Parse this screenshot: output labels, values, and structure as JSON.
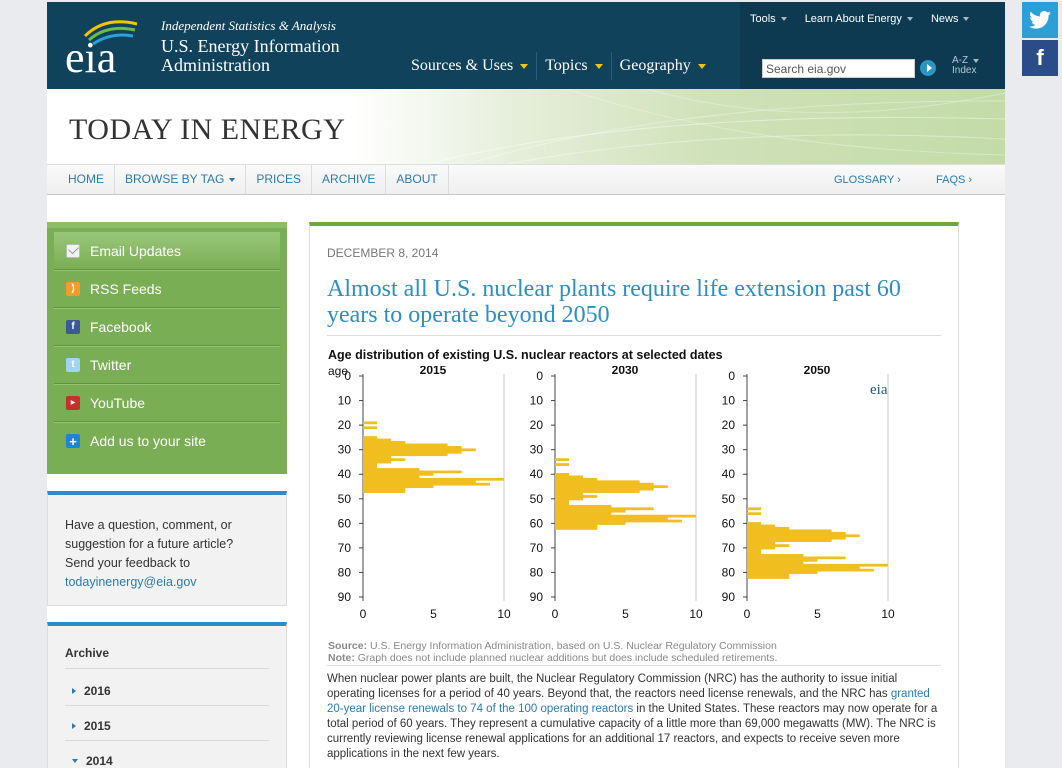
{
  "header": {
    "logo_text": "eia",
    "tagline": "Independent Statistics & Analysis",
    "org_name_line1": "U.S. Energy Information",
    "org_name_line2": "Administration",
    "main_nav": [
      "Sources & Uses",
      "Topics",
      "Geography"
    ],
    "util_nav": [
      "Tools",
      "Learn About Energy",
      "News"
    ],
    "search_placeholder": "Search eia.gov",
    "az_line1": "A-Z",
    "az_line2": "Index"
  },
  "banner": {
    "title": "TODAY IN ENERGY"
  },
  "sub_nav": {
    "items": [
      "HOME",
      "BROWSE BY TAG",
      "PRICES",
      "ARCHIVE",
      "ABOUT"
    ],
    "glossary": "GLOSSARY ›",
    "faqs": "FAQS ›"
  },
  "sidebar": {
    "social": [
      {
        "label": "Email Updates",
        "icon": "email-icon"
      },
      {
        "label": "RSS Feeds",
        "icon": "rss-icon"
      },
      {
        "label": "Facebook",
        "icon": "facebook-icon"
      },
      {
        "label": "Twitter",
        "icon": "twitter-icon"
      },
      {
        "label": "YouTube",
        "icon": "youtube-icon"
      },
      {
        "label": "Add us to your site",
        "icon": "plus-icon"
      }
    ],
    "feedback_text": "Have a question, comment, or suggestion for a future article? Send your feedback to",
    "feedback_email": "todayinenergy@eia.gov",
    "archive_heading": "Archive",
    "archive_years": [
      "2016",
      "2015",
      "2014"
    ]
  },
  "article": {
    "date": "DECEMBER 8, 2014",
    "title": "Almost all U.S. nuclear plants require life extension past 60 years to operate beyond 2050",
    "source_label": "Source:",
    "source_text": "U.S. Energy Information Administration, based on U.S. Nuclear Regulatory Commission",
    "note_label": "Note:",
    "note_text": "Graph does not include planned nuclear additions but does include scheduled retirements.",
    "body_part1": "When nuclear power plants are built, the Nuclear Regulatory Commission (NRC) has the authority to issue initial operating licenses for a period of 40 years. Beyond that, the reactors need license renewals, and the NRC has ",
    "body_link": "granted 20-year license renewals to 74 of the 100 operating reactors",
    "body_part2": " in the United States. These reactors may now operate for a total period of 60 years. They represent a cumulative capacity of a little more than 69,000 megawatts (MW). The NRC is currently reviewing license renewal applications for an additional 17 reactors, and expects to receive seven more applications in the next few years."
  },
  "chart_data": {
    "type": "bar",
    "orientation": "horizontal",
    "title": "Age distribution  of existing U.S. nuclear reactors at selected dates",
    "ylabel": "age",
    "logo": "eia",
    "bar_color": "#f0be1e",
    "y_ticks": [
      0,
      10,
      20,
      30,
      40,
      50,
      60,
      70,
      80,
      90
    ],
    "x_ticks": [
      0,
      5,
      10
    ],
    "ylim": [
      0,
      90
    ],
    "xlim": [
      0,
      10
    ],
    "panels": [
      {
        "name": "2015",
        "bars": [
          {
            "age": 19,
            "count": 1
          },
          {
            "age": 20,
            "count": 0
          },
          {
            "age": 21,
            "count": 1
          },
          {
            "age": 25,
            "count": 1
          },
          {
            "age": 26,
            "count": 2
          },
          {
            "age": 27,
            "count": 3
          },
          {
            "age": 28,
            "count": 6
          },
          {
            "age": 29,
            "count": 7
          },
          {
            "age": 30,
            "count": 8
          },
          {
            "age": 31,
            "count": 7
          },
          {
            "age": 32,
            "count": 6
          },
          {
            "age": 33,
            "count": 2
          },
          {
            "age": 34,
            "count": 3
          },
          {
            "age": 35,
            "count": 2
          },
          {
            "age": 36,
            "count": 1
          },
          {
            "age": 37,
            "count": 1
          },
          {
            "age": 38,
            "count": 4
          },
          {
            "age": 39,
            "count": 7
          },
          {
            "age": 40,
            "count": 5
          },
          {
            "age": 41,
            "count": 4
          },
          {
            "age": 42,
            "count": 10
          },
          {
            "age": 43,
            "count": 8
          },
          {
            "age": 44,
            "count": 9
          },
          {
            "age": 45,
            "count": 5
          },
          {
            "age": 46,
            "count": 3
          },
          {
            "age": 47,
            "count": 3
          }
        ]
      },
      {
        "name": "2030",
        "bars": [
          {
            "age": 34,
            "count": 1
          },
          {
            "age": 36,
            "count": 1
          },
          {
            "age": 40,
            "count": 1
          },
          {
            "age": 41,
            "count": 2
          },
          {
            "age": 42,
            "count": 3
          },
          {
            "age": 43,
            "count": 6
          },
          {
            "age": 44,
            "count": 7
          },
          {
            "age": 45,
            "count": 8
          },
          {
            "age": 46,
            "count": 7
          },
          {
            "age": 47,
            "count": 6
          },
          {
            "age": 48,
            "count": 2
          },
          {
            "age": 49,
            "count": 3
          },
          {
            "age": 50,
            "count": 2
          },
          {
            "age": 51,
            "count": 1
          },
          {
            "age": 52,
            "count": 1
          },
          {
            "age": 53,
            "count": 4
          },
          {
            "age": 54,
            "count": 7
          },
          {
            "age": 55,
            "count": 5
          },
          {
            "age": 56,
            "count": 4
          },
          {
            "age": 57,
            "count": 10
          },
          {
            "age": 58,
            "count": 8
          },
          {
            "age": 59,
            "count": 9
          },
          {
            "age": 60,
            "count": 5
          },
          {
            "age": 61,
            "count": 3
          },
          {
            "age": 62,
            "count": 3
          }
        ]
      },
      {
        "name": "2050",
        "bars": [
          {
            "age": 54,
            "count": 1
          },
          {
            "age": 56,
            "count": 1
          },
          {
            "age": 60,
            "count": 1
          },
          {
            "age": 61,
            "count": 2
          },
          {
            "age": 62,
            "count": 3
          },
          {
            "age": 63,
            "count": 6
          },
          {
            "age": 64,
            "count": 7
          },
          {
            "age": 65,
            "count": 8
          },
          {
            "age": 66,
            "count": 7
          },
          {
            "age": 67,
            "count": 6
          },
          {
            "age": 68,
            "count": 2
          },
          {
            "age": 69,
            "count": 3
          },
          {
            "age": 70,
            "count": 2
          },
          {
            "age": 71,
            "count": 1
          },
          {
            "age": 72,
            "count": 1
          },
          {
            "age": 73,
            "count": 4
          },
          {
            "age": 74,
            "count": 7
          },
          {
            "age": 75,
            "count": 5
          },
          {
            "age": 76,
            "count": 4
          },
          {
            "age": 77,
            "count": 10
          },
          {
            "age": 78,
            "count": 8
          },
          {
            "age": 79,
            "count": 9
          },
          {
            "age": 80,
            "count": 5
          },
          {
            "age": 81,
            "count": 3
          },
          {
            "age": 82,
            "count": 3
          }
        ]
      }
    ]
  }
}
